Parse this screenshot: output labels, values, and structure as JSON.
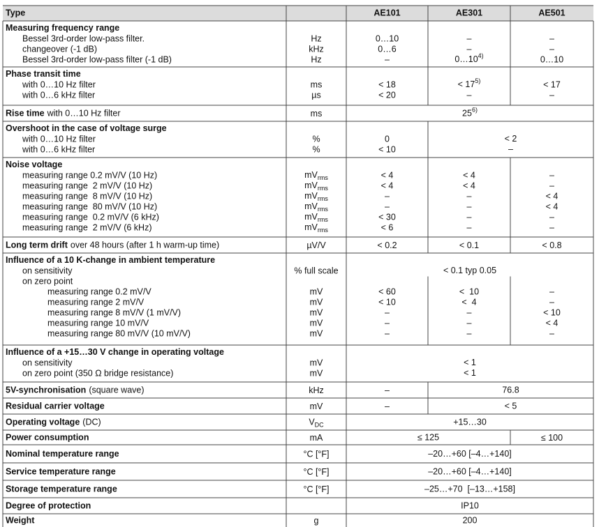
{
  "header": {
    "type": "Type",
    "models": [
      "AE101",
      "AE301",
      "AE501"
    ]
  },
  "sections": [
    {
      "title": "Measuring frequency range",
      "rows": [
        {
          "label": "Bessel 3rd-order low-pass filter.",
          "unit": "Hz",
          "values": [
            "0…10",
            "–",
            "–"
          ]
        },
        {
          "label": "changeover (-1 dB)",
          "unit": "kHz",
          "values": [
            "0…6",
            "–",
            "–"
          ]
        },
        {
          "label": "Bessel 3rd-order low-pass filter (-1 dB)",
          "unit": "Hz",
          "values": [
            "–",
            {
              "text": "0…10",
              "sup": "4)"
            },
            "0…10"
          ]
        }
      ]
    },
    {
      "title": "Phase transit time",
      "rows": [
        {
          "label": "with 0…10 Hz filter",
          "unit": "ms",
          "values": [
            "< 18",
            {
              "text": "< 17",
              "sup": "5)"
            },
            "< 17"
          ]
        },
        {
          "label": "with 0…6 kHz filter",
          "unit": "µs",
          "values": [
            "< 20",
            "–",
            "–"
          ]
        }
      ]
    },
    {
      "title": "Rise time",
      "note": "with 0…10 Hz filter",
      "unit": "ms",
      "values": [
        {
          "text": "25",
          "sup": "6)",
          "span": 3
        }
      ]
    },
    {
      "title": "Overshoot in the case of voltage surge",
      "rows": [
        {
          "label": "with 0…10 Hz filter",
          "unit": "%",
          "values": [
            "0",
            {
              "text": "< 2",
              "span": 2
            }
          ]
        },
        {
          "label": "with 0…6 kHz filter",
          "unit": "%",
          "values": [
            "< 10",
            {
              "text": "–",
              "span": 2
            }
          ]
        }
      ]
    },
    {
      "title": "Noise voltage",
      "rows": [
        {
          "label": "measuring range 0.2 mV/V (10 Hz)",
          "unit": {
            "base": "mV",
            "sub": "rms"
          },
          "values": [
            "< 4",
            "< 4",
            "–"
          ]
        },
        {
          "label": "measuring range  2 mV/V (10 Hz)",
          "unit": {
            "base": "mV",
            "sub": "rms"
          },
          "values": [
            "< 4",
            "< 4",
            "–"
          ]
        },
        {
          "label": "measuring range  8 mV/V (10 Hz)",
          "unit": {
            "base": "mV",
            "sub": "rms"
          },
          "values": [
            "–",
            "–",
            "< 4"
          ]
        },
        {
          "label": "measuring range  80 mV/V (10 Hz)",
          "unit": {
            "base": "mV",
            "sub": "rms"
          },
          "values": [
            "–",
            "–",
            "< 4"
          ]
        },
        {
          "label": "measuring range  0.2 mV/V (6 kHz)",
          "unit": {
            "base": "mV",
            "sub": "rms"
          },
          "values": [
            "< 30",
            "–",
            "–"
          ]
        },
        {
          "label": "measuring range  2 mV/V (6 kHz)",
          "unit": {
            "base": "mV",
            "sub": "rms"
          },
          "values": [
            "< 6",
            "–",
            "–"
          ]
        }
      ]
    },
    {
      "title": "Long term drift",
      "note": "over 48 hours (after 1 h warm-up time)",
      "unit": "µV/V",
      "values": [
        "< 0.2",
        "< 0.1",
        "< 0.8"
      ]
    },
    {
      "title": "Influence of a 10 K-change in ambient temperature",
      "rows": [
        {
          "label": "on sensitivity",
          "unit": "% full scale",
          "values": [
            {
              "text": "< 0.1 typ 0.05",
              "span": 3
            }
          ]
        },
        {
          "label": "on zero point",
          "rows": [
            {
              "label": "measuring range 0.2 mV/V",
              "unit": "mV",
              "values": [
                "< 60",
                "<  10",
                "–"
              ]
            },
            {
              "label": "measuring range 2 mV/V",
              "unit": "mV",
              "values": [
                "< 10",
                "<  4",
                "–"
              ]
            },
            {
              "label": "measuring range 8 mV/V (1 mV/V)",
              "unit": "mV",
              "values": [
                "–",
                "–",
                "< 10"
              ]
            },
            {
              "label": "measuring range 10 mV/V",
              "unit": "mV",
              "values": [
                "–",
                "–",
                "< 4"
              ]
            },
            {
              "label": "measuring range 80 mV/V (10 mV/V)",
              "unit": "mV",
              "values": [
                "–",
                "–",
                "–"
              ]
            }
          ]
        }
      ]
    },
    {
      "title": "Influence of a +15…30 V change in operating voltage",
      "rows": [
        {
          "label": "on sensitivity",
          "unit": "mV",
          "values": [
            {
              "text": "< 1",
              "span": 3
            }
          ]
        },
        {
          "label": "on zero point (350 Ω bridge resistance)",
          "unit": "mV",
          "values": [
            {
              "text": "< 1",
              "span": 3
            }
          ]
        }
      ]
    },
    {
      "title": "5V-synchronisation",
      "note": "(square wave)",
      "unit": "kHz",
      "values": [
        "–",
        {
          "text": "76.8",
          "span": 2
        }
      ]
    },
    {
      "title": "Residual carrier voltage",
      "unit": "mV",
      "values": [
        "–",
        {
          "text": "< 5",
          "span": 2
        }
      ]
    },
    {
      "title": "Operating voltage",
      "note": "(DC)",
      "unit": {
        "base": "V",
        "sub": "DC"
      },
      "values": [
        {
          "text": "+15…30",
          "span": 3
        }
      ]
    },
    {
      "title": "Power consumption",
      "unit": "mA",
      "values": [
        {
          "text": "≤ 125",
          "span": 2
        },
        "≤ 100"
      ]
    },
    {
      "title": "Nominal temperature range",
      "unit": "°C [°F]",
      "values": [
        {
          "text": "–20…+60 [–4…+140]",
          "span": 3
        }
      ]
    },
    {
      "title": "Service temperature range",
      "unit": "°C [°F]",
      "values": [
        {
          "text": "–20…+60 [–4…+140]",
          "span": 3
        }
      ]
    },
    {
      "title": "Storage temperature range",
      "unit": "°C [°F]",
      "values": [
        {
          "text": "–25…+70  [–13…+158]",
          "span": 3
        }
      ]
    },
    {
      "title": "Degree of protection",
      "unit": "",
      "values": [
        {
          "text": "IP10",
          "span": 3
        }
      ]
    },
    {
      "title": "Weight",
      "unit": "g",
      "values": [
        {
          "text": "200",
          "span": 3
        }
      ]
    }
  ]
}
